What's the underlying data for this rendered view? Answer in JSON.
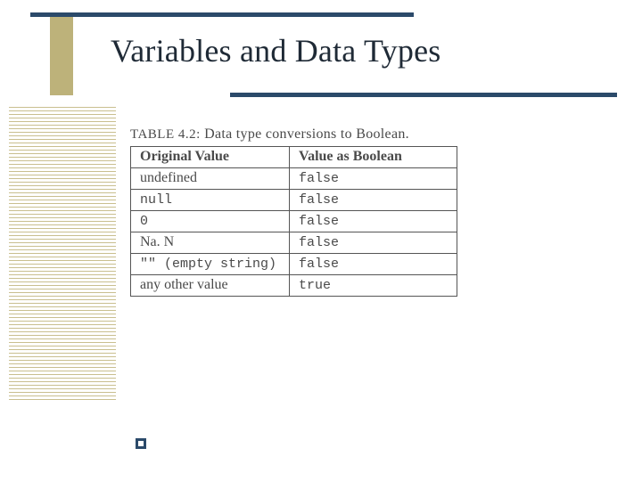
{
  "theme": {
    "rule_color": "#2b4a6a",
    "khaki": "#bdb27a",
    "stripe": "#c9bf8f",
    "text": "#1f2a36",
    "table_text": "#4a4a4a",
    "background": "#ffffff"
  },
  "title": "Variables and Data Types",
  "table": {
    "caption_label": "TABLE 4.2:",
    "caption_text": "Data type conversions to Boolean.",
    "columns": [
      "Original Value",
      "Value as Boolean"
    ],
    "rows": [
      {
        "original": "undefined",
        "orig_mono": false,
        "boolean": "false"
      },
      {
        "original": "null",
        "orig_mono": true,
        "boolean": "false"
      },
      {
        "original": "0",
        "orig_mono": true,
        "boolean": "false"
      },
      {
        "original": "Na. N",
        "orig_mono": false,
        "boolean": "false"
      },
      {
        "original": "\"\" (empty string)",
        "orig_mono": true,
        "boolean": "false"
      },
      {
        "original": "any other value",
        "orig_mono": false,
        "boolean": "true"
      }
    ]
  }
}
